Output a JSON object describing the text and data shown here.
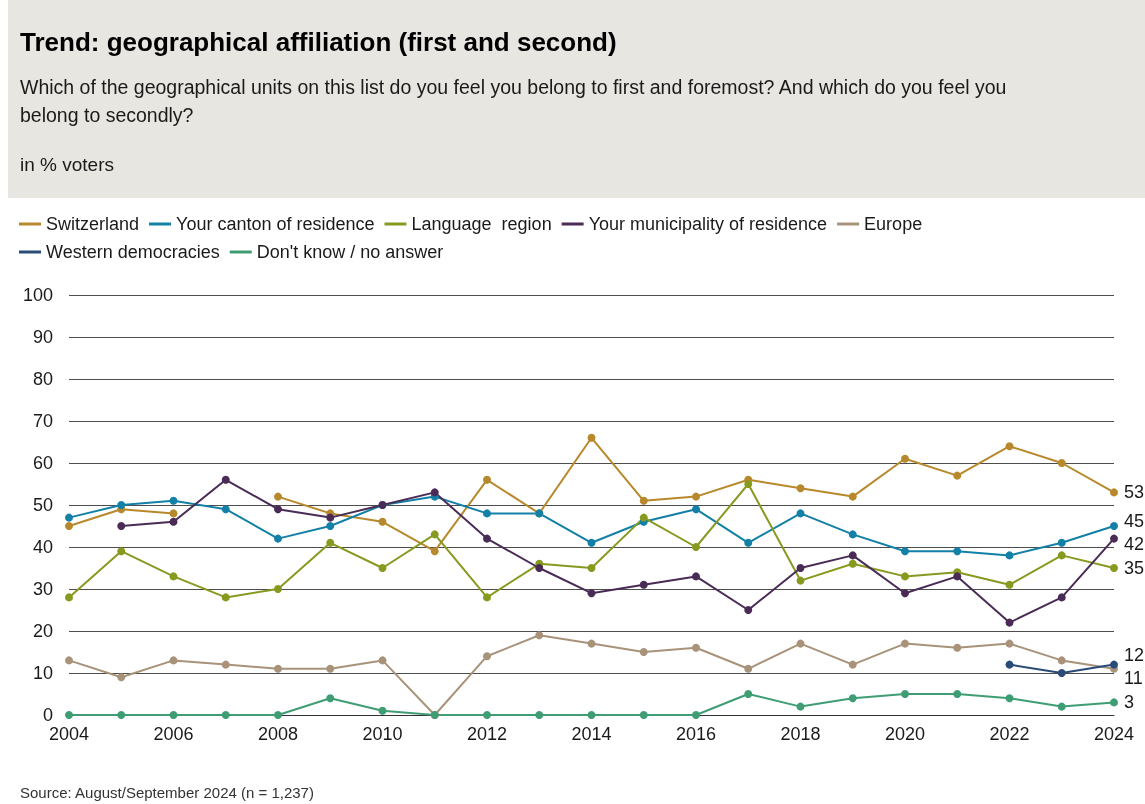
{
  "chart_data": {
    "type": "line",
    "title": "Trend: geographical affiliation (first and second)",
    "subtitle": "Which of the geographical units on this list do you feel you belong to first and foremost? And which do you feel you belong to secondly?",
    "annotations": [
      "in % voters",
      "Source: August/September 2024 (n = 1,237)"
    ],
    "x": [
      2004,
      2005,
      2006,
      2007,
      2008,
      2009,
      2010,
      2011,
      2012,
      2013,
      2014,
      2015,
      2016,
      2017,
      2018,
      2019,
      2020,
      2021,
      2022,
      2023,
      2024
    ],
    "series": [
      {
        "name": "Switzerland",
        "color": "#b8892c",
        "values": [
          45,
          49,
          48,
          null,
          52,
          48,
          46,
          39,
          56,
          48,
          66,
          51,
          52,
          56,
          54,
          52,
          61,
          57,
          64,
          60,
          53
        ],
        "value_labels": [
          null,
          null,
          null,
          null,
          null,
          null,
          null,
          null,
          null,
          null,
          null,
          null,
          null,
          null,
          null,
          null,
          null,
          null,
          null,
          null,
          "53"
        ]
      },
      {
        "name": "Your canton of residence",
        "color": "#1380a7",
        "values": [
          47,
          50,
          51,
          49,
          42,
          45,
          50,
          52,
          48,
          48,
          41,
          46,
          49,
          41,
          48,
          43,
          39,
          39,
          38,
          41,
          45
        ],
        "value_labels": [
          null,
          null,
          null,
          null,
          null,
          null,
          null,
          null,
          null,
          null,
          null,
          null,
          null,
          null,
          null,
          null,
          null,
          null,
          null,
          null,
          "45"
        ]
      },
      {
        "name": "Language  region",
        "color": "#879a1f",
        "values": [
          28,
          39,
          33,
          28,
          30,
          41,
          35,
          43,
          28,
          36,
          35,
          47,
          40,
          55,
          32,
          36,
          33,
          34,
          31,
          38,
          35
        ],
        "value_labels": [
          null,
          null,
          null,
          null,
          null,
          null,
          null,
          null,
          null,
          null,
          null,
          null,
          null,
          null,
          null,
          null,
          null,
          null,
          null,
          null,
          "35"
        ]
      },
      {
        "name": "Your municipality of residence",
        "color": "#4a2b56",
        "values": [
          null,
          45,
          46,
          56,
          49,
          47,
          50,
          53,
          42,
          35,
          29,
          31,
          33,
          25,
          35,
          38,
          29,
          33,
          22,
          28,
          42
        ],
        "value_labels": [
          null,
          null,
          null,
          null,
          null,
          null,
          null,
          null,
          null,
          null,
          null,
          null,
          null,
          null,
          null,
          null,
          null,
          null,
          null,
          null,
          "42"
        ]
      },
      {
        "name": "Europe",
        "color": "#a8937a",
        "values": [
          13,
          9,
          13,
          12,
          11,
          11,
          13,
          0,
          14,
          19,
          17,
          15,
          16,
          11,
          17,
          12,
          17,
          16,
          17,
          13,
          11
        ],
        "value_labels": [
          null,
          null,
          null,
          null,
          null,
          null,
          null,
          null,
          null,
          null,
          null,
          null,
          null,
          null,
          null,
          null,
          null,
          null,
          null,
          null,
          "11"
        ]
      },
      {
        "name": "Western democracies",
        "color": "#2a4a78",
        "x": [
          2022,
          2023,
          2024
        ],
        "values": [
          12,
          10,
          12
        ],
        "value_labels": [
          null,
          null,
          "12"
        ]
      },
      {
        "name": "Don't know / no answer",
        "color": "#3f9d73",
        "values": [
          0,
          0,
          0,
          0,
          0,
          4,
          1,
          0,
          0,
          0,
          0,
          0,
          0,
          5,
          2,
          4,
          5,
          5,
          4,
          2,
          3
        ],
        "value_labels": [
          null,
          null,
          null,
          null,
          null,
          null,
          null,
          null,
          null,
          null,
          null,
          null,
          null,
          null,
          null,
          null,
          null,
          null,
          null,
          null,
          "3"
        ]
      }
    ],
    "xlim": [
      2004,
      2024
    ],
    "xticks": [
      2004,
      2006,
      2008,
      2010,
      2012,
      2014,
      2016,
      2018,
      2020,
      2022,
      2024
    ],
    "ylim": [
      0,
      100
    ],
    "yticks": [
      0,
      10,
      20,
      30,
      40,
      50,
      60,
      70,
      80,
      90,
      100
    ],
    "grid": "y",
    "legend": "top left",
    "marker": "circle",
    "line_style": "solid"
  }
}
